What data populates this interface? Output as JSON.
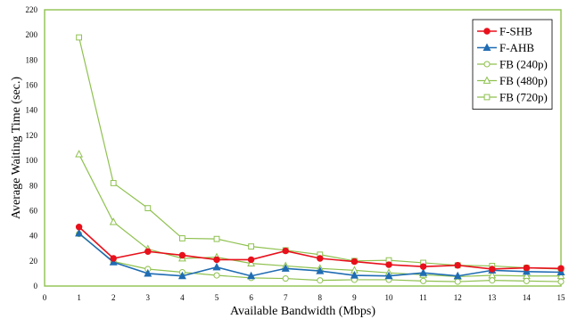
{
  "chart_data": {
    "type": "line",
    "title": "",
    "xlabel": "Available Bandwidth (Mbps)",
    "ylabel": "Average Waiting Time (sec.)",
    "xlim": [
      0,
      15
    ],
    "ylim": [
      0,
      220
    ],
    "xticks": [
      0,
      1,
      2,
      3,
      4,
      5,
      6,
      7,
      8,
      9,
      10,
      11,
      12,
      13,
      14,
      15
    ],
    "yticks": [
      0,
      20,
      40,
      60,
      80,
      100,
      120,
      140,
      160,
      180,
      200,
      220
    ],
    "grid": false,
    "legend_position": "top-right",
    "x": [
      1,
      2,
      3,
      4,
      5,
      6,
      7,
      8,
      9,
      10,
      11,
      12,
      13,
      14,
      15
    ],
    "series": [
      {
        "name": "F-SHB",
        "color": "#e8101b",
        "marker": "filled-circle",
        "values": [
          47,
          22,
          27.5,
          24.5,
          21,
          21,
          28,
          22,
          19.5,
          17,
          15.5,
          16.5,
          13.5,
          14.5,
          14
        ]
      },
      {
        "name": "F-AHB",
        "color": "#1f6cb3",
        "marker": "filled-triangle",
        "values": [
          42,
          19,
          10,
          8,
          15,
          8,
          14,
          12,
          8.5,
          8,
          10.5,
          8,
          12.5,
          11.5,
          11
        ]
      },
      {
        "name": "FB (240p)",
        "color": "#8fc14f",
        "marker": "open-circle",
        "values": [
          41.5,
          19.5,
          13.5,
          11,
          8.5,
          6.5,
          6,
          4.5,
          5,
          5,
          4,
          3.5,
          4.5,
          4,
          3.5
        ]
      },
      {
        "name": "FB (480p)",
        "color": "#8fc14f",
        "marker": "open-triangle",
        "values": [
          105,
          51,
          29.5,
          22,
          23,
          18,
          16,
          14,
          12.5,
          10.5,
          9,
          7.5,
          8.5,
          8,
          8
        ]
      },
      {
        "name": "FB (720p)",
        "color": "#8fc14f",
        "marker": "open-square",
        "values": [
          198,
          82,
          62,
          38,
          37.5,
          31.5,
          28.5,
          25,
          20,
          20.5,
          18.5,
          16.5,
          16,
          14.5,
          13.5
        ]
      }
    ]
  }
}
